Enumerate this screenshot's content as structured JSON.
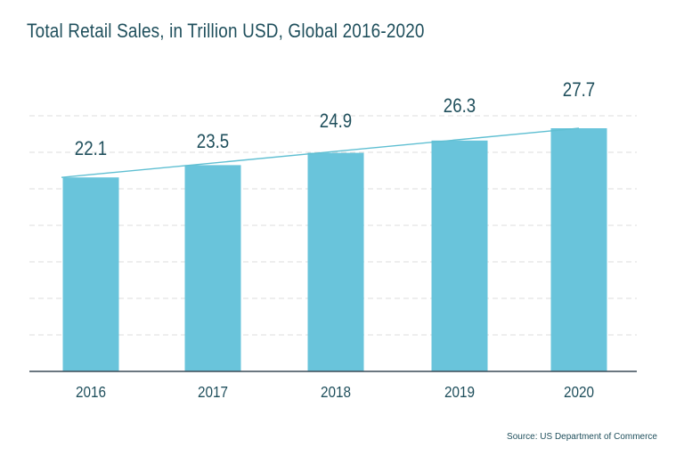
{
  "title": "Total Retail Sales, in Trillion USD, Global 2016-2020",
  "source": "Source: US Department of Commerce",
  "colors": {
    "bar": "#69c4db",
    "trend_line": "#5fbfd2",
    "axis": "#3a4a56",
    "grid": "#dcdcdc",
    "text": "#1f4f5c"
  },
  "chart_data": {
    "type": "bar",
    "title": "Total Retail Sales, in Trillion USD, Global 2016-2020",
    "xlabel": "",
    "ylabel": "",
    "categories": [
      "2016",
      "2017",
      "2018",
      "2019",
      "2020"
    ],
    "values": [
      22.1,
      23.5,
      24.9,
      26.3,
      27.7
    ],
    "value_labels": [
      "22.1",
      "23.5",
      "24.9",
      "26.3",
      "27.7"
    ],
    "trend_line": true,
    "ylim": [
      0,
      28
    ],
    "grid": true,
    "grid_style": "dashed",
    "legend": "none"
  }
}
